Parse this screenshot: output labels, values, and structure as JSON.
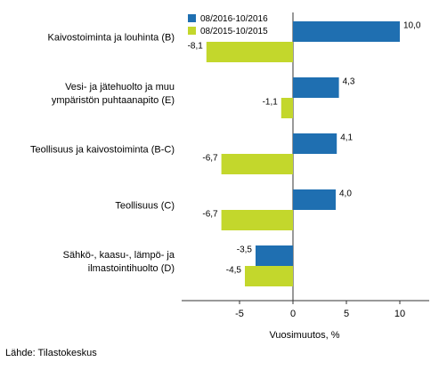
{
  "chart_data": {
    "type": "bar",
    "orientation": "horizontal",
    "categories": [
      [
        "Kaivostoiminta ja louhinta (B)"
      ],
      [
        "Vesi- ja jätehuolto ja muu",
        "ympäristön puhtaanapito (E)"
      ],
      [
        "Teollisuus ja kaivostoiminta (B-C)"
      ],
      [
        "Teollisuus (C)"
      ],
      [
        "Sähkö-, kaasu-, lämpö- ja",
        "ilmastointihuolto (D)"
      ]
    ],
    "series": [
      {
        "name": "08/2016-10/2016",
        "color": "#1f6fb1",
        "values": [
          10.0,
          4.3,
          4.1,
          4.0,
          -3.5
        ],
        "labels": [
          "10,0",
          "4,3",
          "4,1",
          "4,0",
          "-3,5"
        ]
      },
      {
        "name": "08/2015-10/2015",
        "color": "#c3d72c",
        "values": [
          -8.1,
          -1.1,
          -6.7,
          -6.7,
          -4.5
        ],
        "labels": [
          "-8,1",
          "-1,1",
          "-6,7",
          "-6,7",
          "-4,5"
        ]
      }
    ],
    "xlabel": "Vuosimuutos, %",
    "xlim": [
      -10.5,
      12.7
    ],
    "xticks": [
      -5,
      0,
      5,
      10
    ],
    "xtick_labels": [
      "-5",
      "0",
      "5",
      "10"
    ],
    "grid": false,
    "legend_position": "top-left"
  },
  "footer": {
    "source": "Lähde: Tilastokeskus"
  }
}
